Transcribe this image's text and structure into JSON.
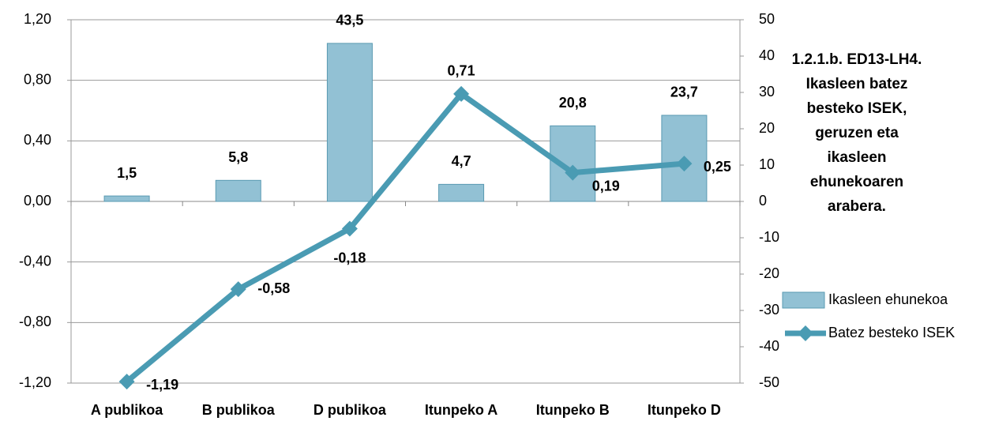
{
  "chart_data": {
    "type": "bar-line",
    "title": "1.2.1.b. ED13-LH4. Ikasleen batez besteko ISEK, geruzen eta ikasleen ehunekoaren arabera.",
    "categories": [
      "A publikoa",
      "B publikoa",
      "D publikoa",
      "Itunpeko A",
      "Itunpeko B",
      "Itunpeko D"
    ],
    "series": [
      {
        "name": "Ikasleen ehunekoa",
        "type": "bar",
        "axis": "y2",
        "color": "#92c1d4",
        "values": [
          1.5,
          5.8,
          43.5,
          4.7,
          20.8,
          23.7
        ],
        "value_labels": [
          "1,5",
          "5,8",
          "43,5",
          "4,7",
          "20,8",
          "23,7"
        ]
      },
      {
        "name": "Batez besteko ISEK",
        "type": "line",
        "axis": "y",
        "color": "#4a9bb3",
        "values": [
          -1.19,
          -0.58,
          -0.18,
          0.71,
          0.19,
          0.25
        ],
        "value_labels": [
          "-1,19",
          "-0,58",
          "-0,18",
          "0,71",
          "0,19",
          "0,25"
        ]
      }
    ],
    "ylim": [
      -1.2,
      1.2
    ],
    "yticks": [
      {
        "value": -1.2,
        "label": "-1,20"
      },
      {
        "value": -0.8,
        "label": "-0,80"
      },
      {
        "value": -0.4,
        "label": "-0,40"
      },
      {
        "value": 0,
        "label": "0,00"
      },
      {
        "value": 0.4,
        "label": "0,40"
      },
      {
        "value": 0.8,
        "label": "0,80"
      },
      {
        "value": 1.2,
        "label": "1,20"
      }
    ],
    "y2lim": [
      -50,
      50
    ],
    "y2ticks": [
      -50,
      -40,
      -30,
      -20,
      -10,
      0,
      10,
      20,
      30,
      40,
      50
    ],
    "grid": true
  }
}
